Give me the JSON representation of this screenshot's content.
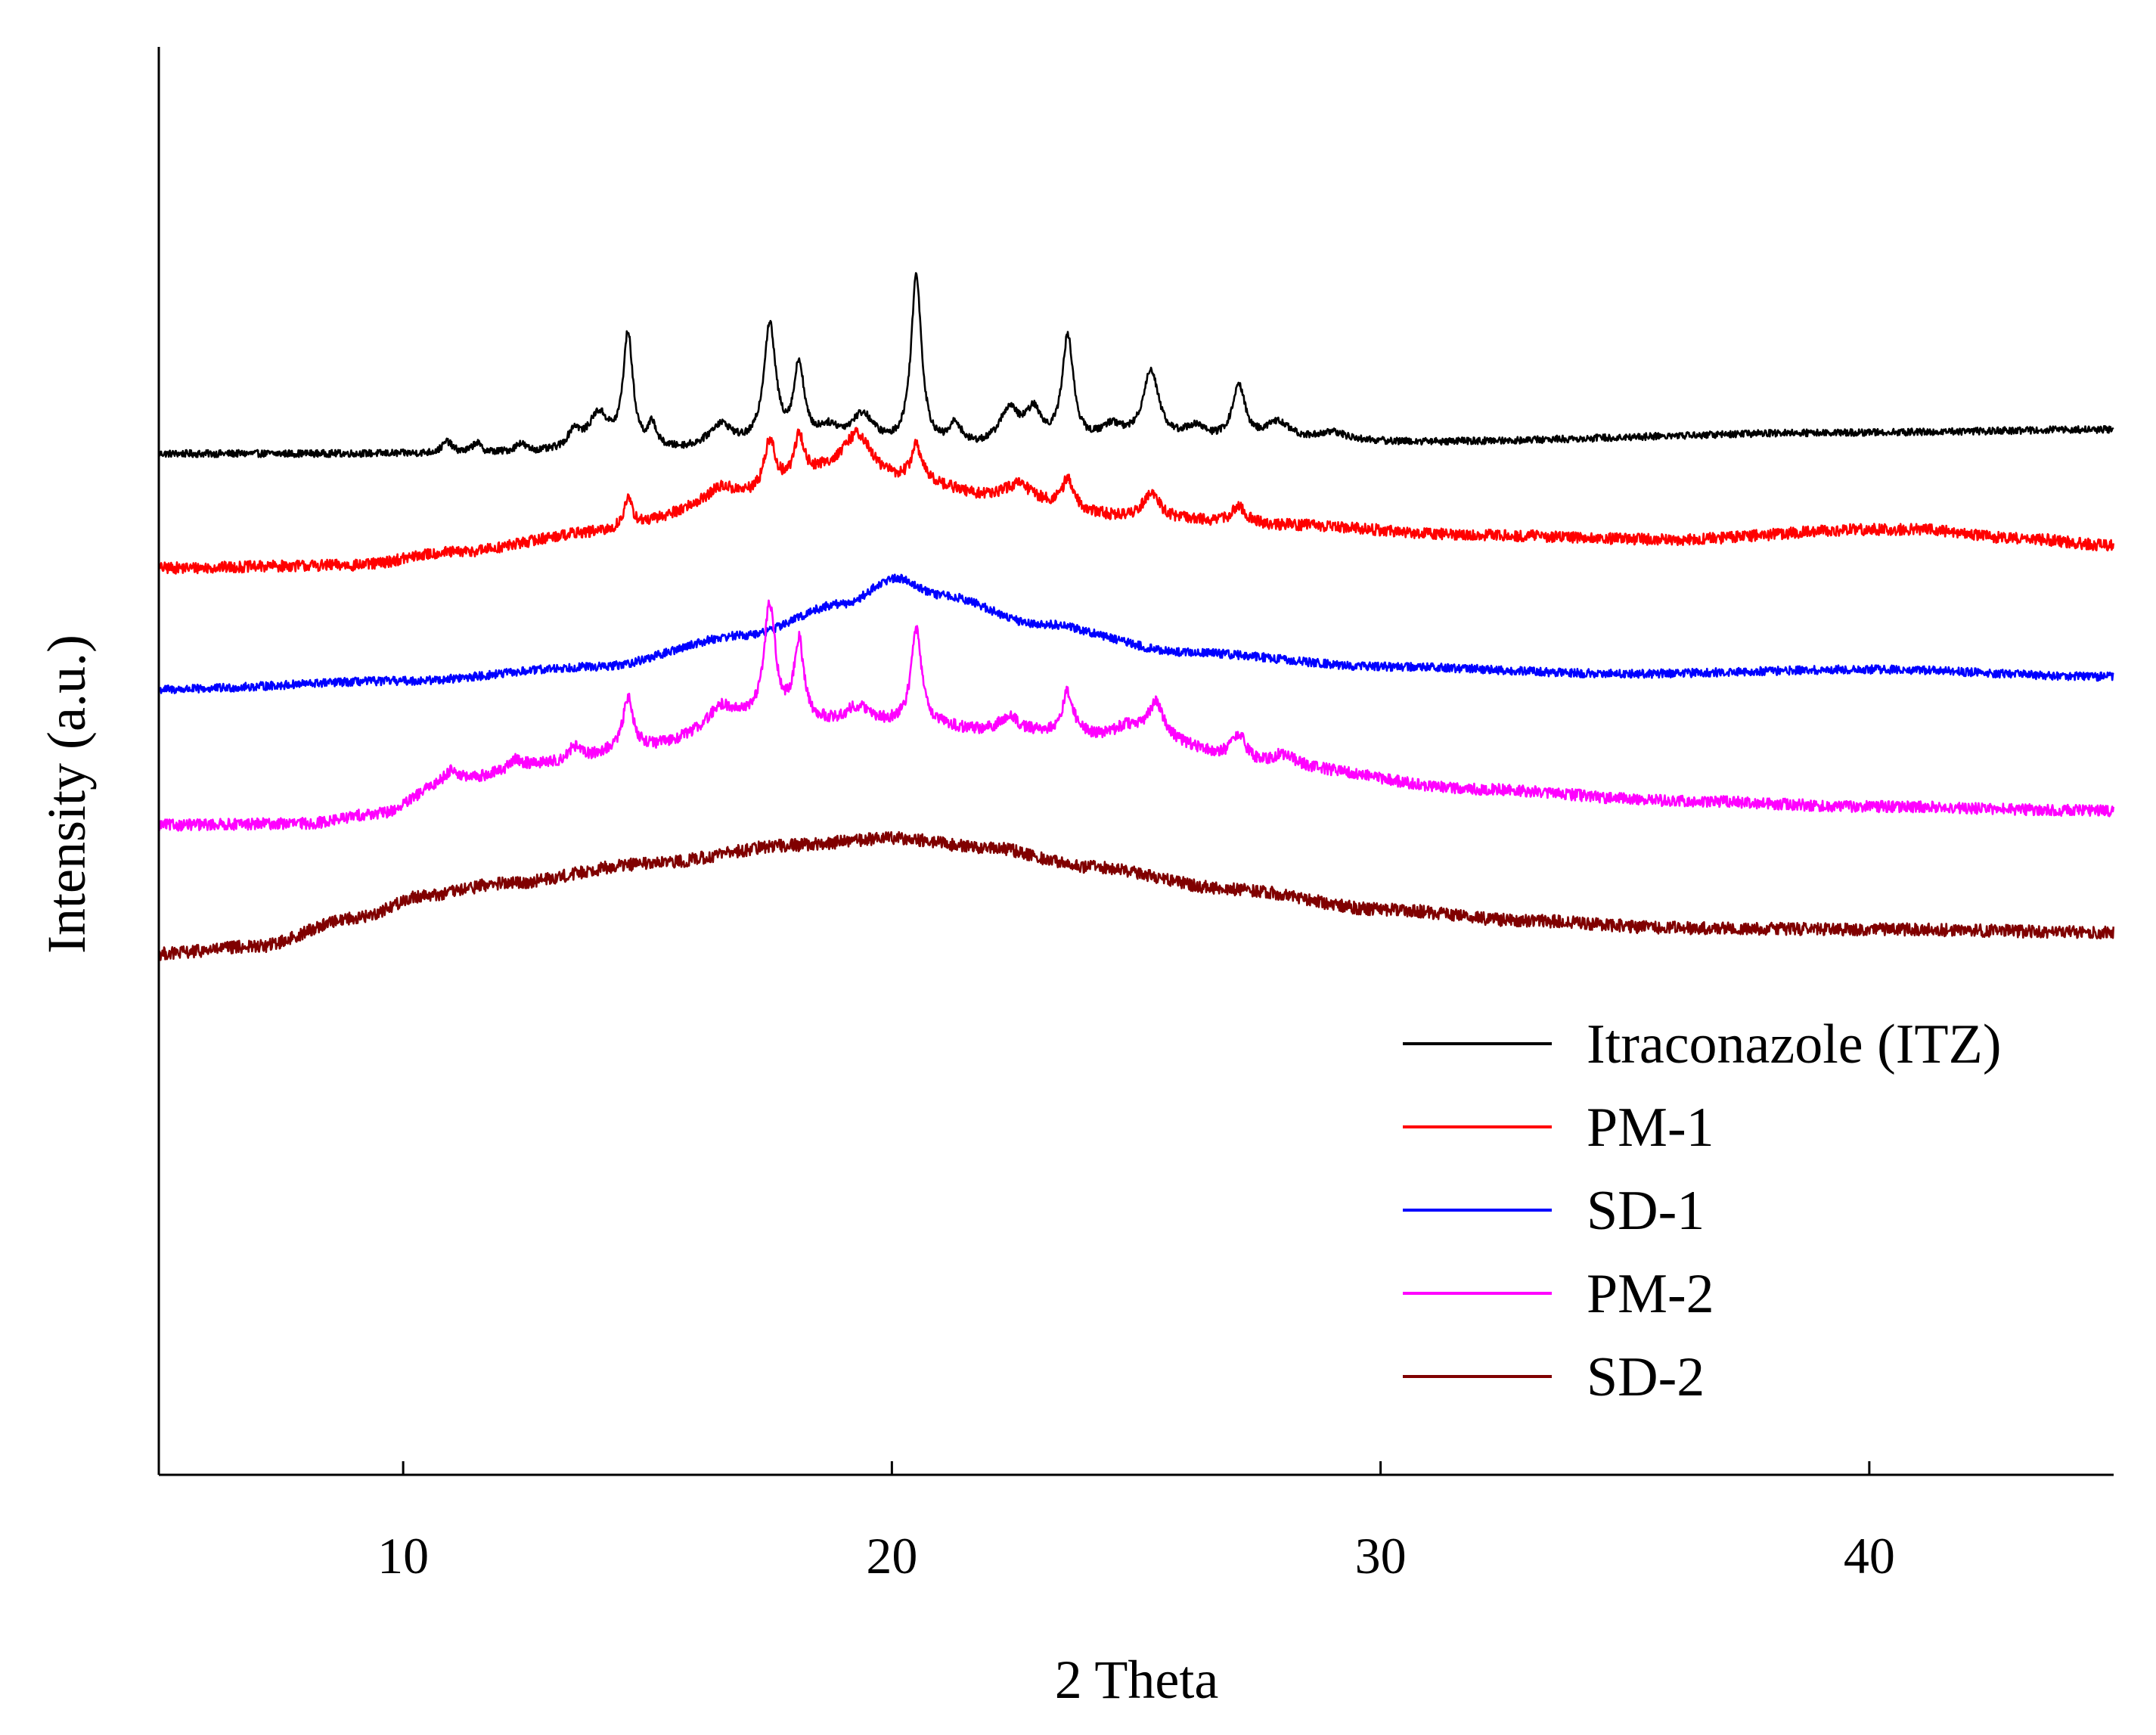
{
  "chart_data": {
    "type": "line",
    "title": "",
    "xlabel": "2 Theta",
    "ylabel": "Intensity (a.u.)",
    "xlim": [
      5,
      45
    ],
    "ylim": [
      0,
      100
    ],
    "xticks": [
      10,
      20,
      30,
      40
    ],
    "xtick_labels": [
      "10",
      "20",
      "30",
      "40"
    ],
    "yticks_shown": false,
    "grid": false,
    "legend_position": "bottom-right",
    "series": [
      {
        "name": "Itraconazole (ITZ)",
        "color": "#000000",
        "baseline": [
          [
            5,
            71.5
          ],
          [
            10,
            71.5
          ],
          [
            20,
            71.7
          ],
          [
            30,
            72.3
          ],
          [
            40,
            73.0
          ],
          [
            45,
            73.2
          ]
        ],
        "noise": 0.25,
        "peaks": [
          {
            "x": 10.9,
            "h": 0.8,
            "w": 0.12
          },
          {
            "x": 11.5,
            "h": 0.7,
            "w": 0.1
          },
          {
            "x": 12.4,
            "h": 0.6,
            "w": 0.12
          },
          {
            "x": 13.5,
            "h": 1.3,
            "w": 0.15
          },
          {
            "x": 14.0,
            "h": 2.5,
            "w": 0.25
          },
          {
            "x": 14.6,
            "h": 8.0,
            "w": 0.12
          },
          {
            "x": 15.1,
            "h": 1.6,
            "w": 0.1
          },
          {
            "x": 16.5,
            "h": 1.7,
            "w": 0.3
          },
          {
            "x": 17.5,
            "h": 8.5,
            "w": 0.15
          },
          {
            "x": 18.1,
            "h": 5.5,
            "w": 0.13
          },
          {
            "x": 18.7,
            "h": 1.2,
            "w": 0.3
          },
          {
            "x": 19.4,
            "h": 2.2,
            "w": 0.3
          },
          {
            "x": 20.5,
            "h": 12.0,
            "w": 0.13
          },
          {
            "x": 21.3,
            "h": 1.5,
            "w": 0.15
          },
          {
            "x": 22.4,
            "h": 2.5,
            "w": 0.25
          },
          {
            "x": 22.9,
            "h": 2.2,
            "w": 0.2
          },
          {
            "x": 23.6,
            "h": 7.5,
            "w": 0.14
          },
          {
            "x": 24.5,
            "h": 1.2,
            "w": 0.3
          },
          {
            "x": 25.3,
            "h": 5.0,
            "w": 0.2
          },
          {
            "x": 26.2,
            "h": 1.0,
            "w": 0.3
          },
          {
            "x": 27.1,
            "h": 3.8,
            "w": 0.16
          },
          {
            "x": 27.9,
            "h": 1.3,
            "w": 0.3
          },
          {
            "x": 29.0,
            "h": 0.6,
            "w": 0.4
          }
        ]
      },
      {
        "name": "PM-1",
        "color": "#ff0000",
        "baseline": [
          [
            5,
            63.5
          ],
          [
            9,
            63.7
          ],
          [
            11,
            64.6
          ],
          [
            14,
            66.0
          ],
          [
            17,
            68.5
          ],
          [
            19,
            70.5
          ],
          [
            20.5,
            69.5
          ],
          [
            22,
            68.5
          ],
          [
            25,
            67.0
          ],
          [
            28,
            66.5
          ],
          [
            32,
            65.8
          ],
          [
            36,
            65.5
          ],
          [
            40,
            66.2
          ],
          [
            41,
            66.2
          ],
          [
            43,
            65.6
          ],
          [
            45,
            65.1
          ]
        ],
        "noise": 0.4,
        "peaks": [
          {
            "x": 14.6,
            "h": 2.0,
            "w": 0.12
          },
          {
            "x": 16.5,
            "h": 0.8,
            "w": 0.3
          },
          {
            "x": 17.5,
            "h": 3.5,
            "w": 0.14
          },
          {
            "x": 18.1,
            "h": 3.0,
            "w": 0.12
          },
          {
            "x": 19.3,
            "h": 2.5,
            "w": 0.3
          },
          {
            "x": 20.5,
            "h": 2.5,
            "w": 0.13
          },
          {
            "x": 22.6,
            "h": 1.0,
            "w": 0.3
          },
          {
            "x": 23.6,
            "h": 2.0,
            "w": 0.14
          },
          {
            "x": 25.3,
            "h": 1.8,
            "w": 0.2
          },
          {
            "x": 27.1,
            "h": 1.2,
            "w": 0.18
          }
        ]
      },
      {
        "name": "SD-1",
        "color": "#0000ff",
        "baseline": [
          [
            5,
            55.0
          ],
          [
            10,
            55.6
          ],
          [
            14,
            56.6
          ],
          [
            17,
            58.8
          ],
          [
            19,
            61.0
          ],
          [
            20.1,
            62.8
          ],
          [
            21,
            61.6
          ],
          [
            23,
            59.6
          ],
          [
            26,
            57.6
          ],
          [
            30,
            56.6
          ],
          [
            35,
            56.1
          ],
          [
            40,
            56.4
          ],
          [
            45,
            55.9
          ]
        ],
        "noise": 0.3,
        "peaks": []
      },
      {
        "name": "PM-2",
        "color": "#ff00ff",
        "baseline": [
          [
            5,
            45.5
          ],
          [
            8,
            45.6
          ],
          [
            9.5,
            46.3
          ],
          [
            11,
            48.6
          ],
          [
            13,
            49.8
          ],
          [
            15,
            51.0
          ],
          [
            17,
            52.8
          ],
          [
            19,
            52.5
          ],
          [
            20.5,
            52.5
          ],
          [
            22,
            52.0
          ],
          [
            25,
            51.5
          ],
          [
            28,
            49.5
          ],
          [
            32,
            48.0
          ],
          [
            36,
            47.2
          ],
          [
            40,
            46.8
          ],
          [
            45,
            46.5
          ]
        ],
        "noise": 0.4,
        "peaks": [
          {
            "x": 11.0,
            "h": 0.8,
            "w": 0.15
          },
          {
            "x": 12.3,
            "h": 0.6,
            "w": 0.15
          },
          {
            "x": 13.5,
            "h": 1.0,
            "w": 0.15
          },
          {
            "x": 14.6,
            "h": 3.5,
            "w": 0.12
          },
          {
            "x": 16.5,
            "h": 1.2,
            "w": 0.3
          },
          {
            "x": 17.5,
            "h": 8.0,
            "w": 0.14
          },
          {
            "x": 18.1,
            "h": 5.5,
            "w": 0.12
          },
          {
            "x": 19.3,
            "h": 1.2,
            "w": 0.3
          },
          {
            "x": 20.5,
            "h": 6.5,
            "w": 0.13
          },
          {
            "x": 22.4,
            "h": 1.0,
            "w": 0.25
          },
          {
            "x": 23.6,
            "h": 3.0,
            "w": 0.14
          },
          {
            "x": 24.8,
            "h": 0.8,
            "w": 0.3
          },
          {
            "x": 25.4,
            "h": 2.5,
            "w": 0.2
          },
          {
            "x": 27.1,
            "h": 1.8,
            "w": 0.18
          },
          {
            "x": 28.0,
            "h": 0.9,
            "w": 0.3
          }
        ]
      },
      {
        "name": "SD-2",
        "color": "#800000",
        "baseline": [
          [
            5,
            36.5
          ],
          [
            7,
            37.0
          ],
          [
            9,
            39.0
          ],
          [
            10.5,
            40.6
          ],
          [
            12,
            41.4
          ],
          [
            15,
            42.8
          ],
          [
            18,
            44.1
          ],
          [
            20,
            44.6
          ],
          [
            22,
            43.9
          ],
          [
            24,
            42.6
          ],
          [
            27,
            41.0
          ],
          [
            30,
            39.6
          ],
          [
            33,
            38.8
          ],
          [
            36,
            38.3
          ],
          [
            40,
            38.2
          ],
          [
            45,
            38.0
          ]
        ],
        "noise": 0.45,
        "peaks": []
      }
    ]
  }
}
